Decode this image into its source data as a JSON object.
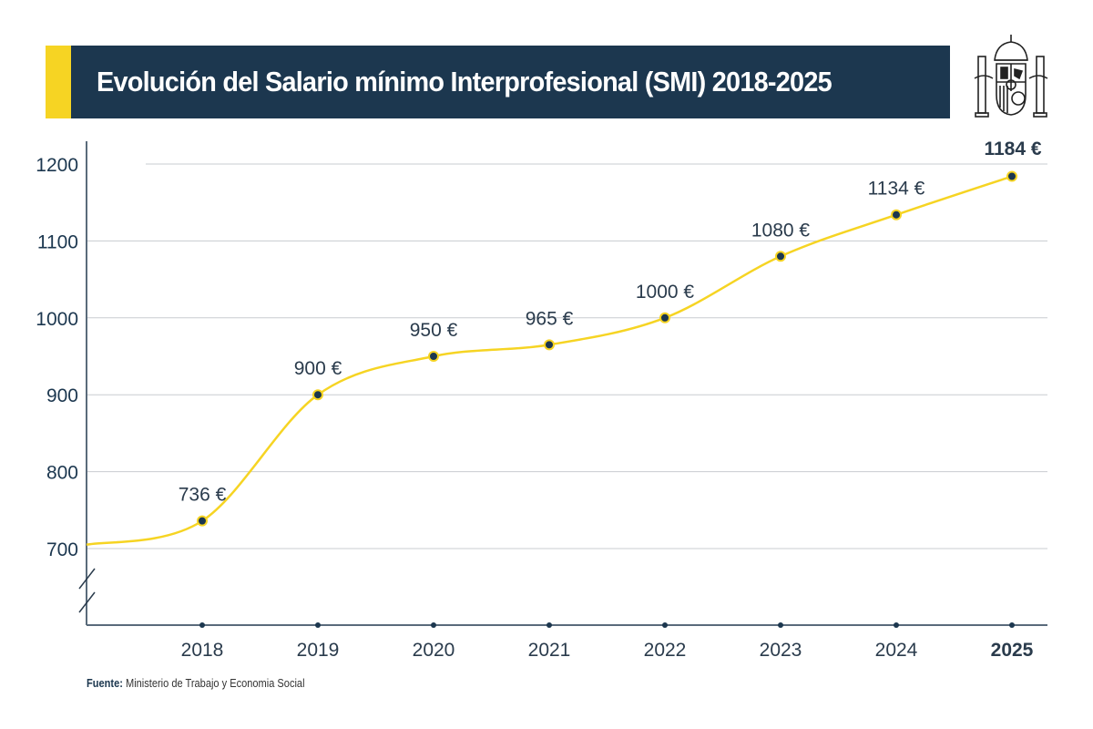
{
  "title": "Evolución del Salario mínimo Interprofesional (SMI) 2018-2025",
  "emblem": "coat-of-arms-of-spain",
  "colors": {
    "navy": "#1c374f",
    "accent": "#f6d423",
    "grid": "#c8ccd0"
  },
  "source": {
    "label": "Fuente:",
    "text": "Ministerio de Trabajo y Economia Social"
  },
  "chart_data": {
    "type": "line",
    "title": "Evolución del Salario mínimo Interprofesional (SMI) 2018-2025",
    "xlabel": "",
    "ylabel": "",
    "categories": [
      "2018",
      "2019",
      "2020",
      "2021",
      "2022",
      "2023",
      "2024",
      "2025"
    ],
    "values": [
      736,
      900,
      950,
      965,
      1000,
      1080,
      1134,
      1184
    ],
    "data_labels": [
      "736 €",
      "900 €",
      "950 €",
      "965 €",
      "1000 €",
      "1080 €",
      "1134 €",
      "1184 €"
    ],
    "highlight": "2025",
    "yticks": [
      "700",
      "800",
      "900",
      "1000",
      "1100",
      "1200"
    ],
    "ylim": [
      700,
      1200
    ],
    "y_axis_break": true,
    "smooth": true,
    "grid": "horizontal",
    "line_color": "#f6d423",
    "marker_color": "#1c374f"
  }
}
